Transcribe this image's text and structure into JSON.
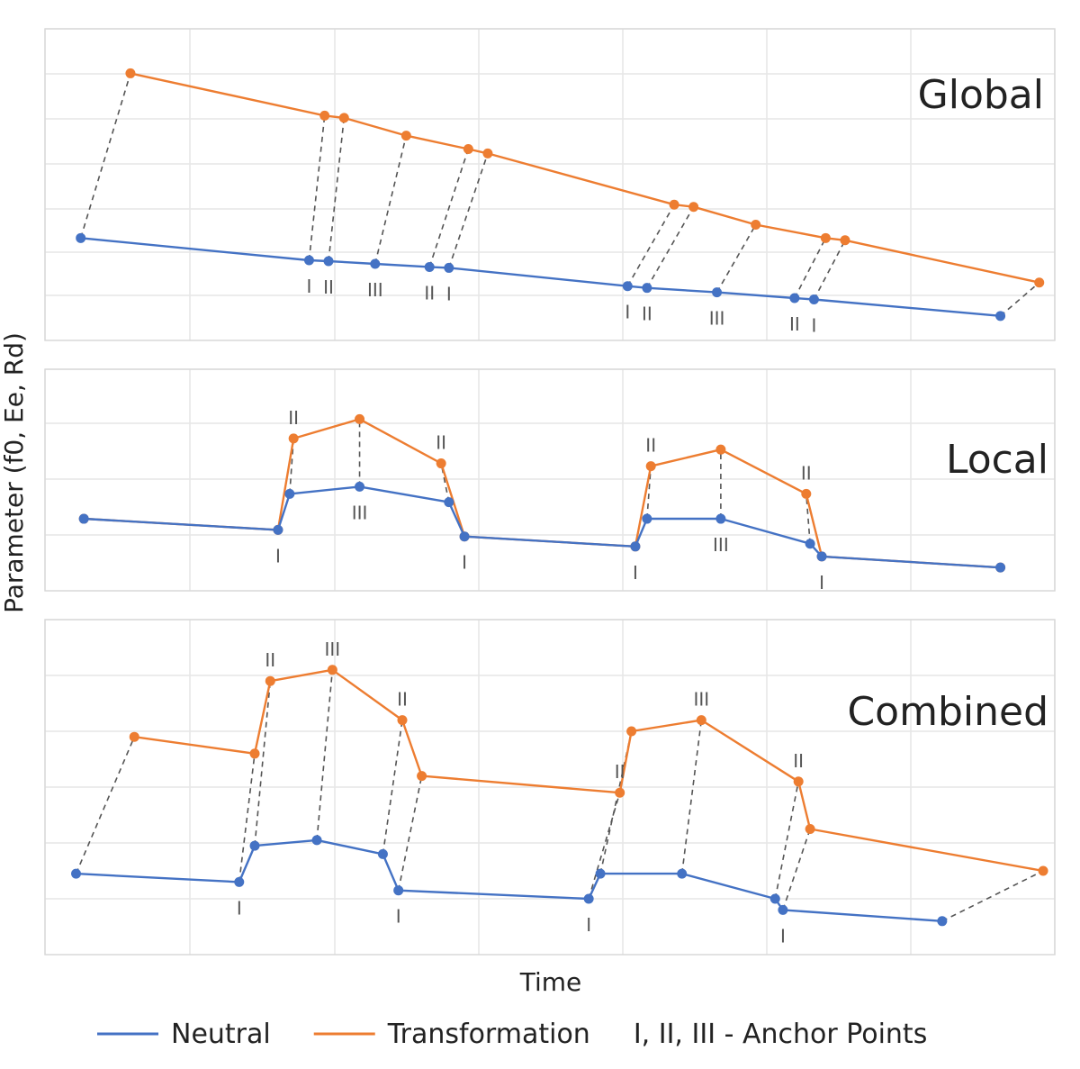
{
  "chart_data": {
    "type": "line",
    "xlabel": "Time",
    "ylabel": "Parameter (f0, Ee, Rd)",
    "legend_position": "bottom",
    "grid": true,
    "colors": {
      "neutral": "#4472C4",
      "transformation": "#ED7D31",
      "connector": "#555555"
    },
    "legend": [
      {
        "key": "neutral",
        "label": "Neutral",
        "type": "line"
      },
      {
        "key": "transformation",
        "label": "Transformation",
        "type": "line"
      },
      {
        "key": "anchors",
        "label": "I, II, III - Anchor Points",
        "type": "text"
      }
    ],
    "panels": [
      {
        "title": "Global",
        "neutral": {
          "name": "Neutral",
          "x": [
            0.6,
            30,
            32.5,
            38.5,
            45.5,
            48,
            71,
            73.5,
            82.5,
            92.5,
            95,
            119
          ],
          "y": [
            2.3,
            1.8,
            1.78,
            1.72,
            1.65,
            1.63,
            1.22,
            1.18,
            1.08,
            0.95,
            0.92,
            0.55
          ]
        },
        "transformation": {
          "name": "Transformation",
          "x": [
            7,
            32,
            34.5,
            42.5,
            50.5,
            53,
            77,
            79.5,
            87.5,
            96.5,
            99,
            124
          ],
          "y": [
            6.0,
            5.05,
            5.0,
            4.6,
            4.3,
            4.2,
            3.05,
            3.0,
            2.6,
            2.3,
            2.25,
            1.3
          ]
        },
        "anchors": [
          {
            "label": "I",
            "x": 30
          },
          {
            "label": "II",
            "x": 32.5
          },
          {
            "label": "III",
            "x": 38.5
          },
          {
            "label": "II",
            "x": 45.5
          },
          {
            "label": "I",
            "x": 48
          },
          {
            "label": "I",
            "x": 71
          },
          {
            "label": "II",
            "x": 73.5
          },
          {
            "label": "III",
            "x": 82.5
          },
          {
            "label": "II",
            "x": 92.5
          },
          {
            "label": "I",
            "x": 95
          }
        ]
      },
      {
        "title": "Local",
        "neutral": {
          "name": "Neutral",
          "x": [
            1,
            26,
            27.5,
            36.5,
            48,
            50,
            72,
            73.5,
            83,
            94.5,
            96,
            119
          ],
          "y": [
            1.3,
            1.1,
            1.75,
            1.88,
            1.6,
            0.98,
            0.8,
            1.3,
            1.3,
            0.85,
            0.62,
            0.42
          ]
        },
        "transformation": {
          "name": "Transformation",
          "x": [
            1,
            26,
            28,
            36.5,
            47,
            50,
            72,
            74,
            83,
            94,
            96,
            119
          ],
          "y": [
            1.3,
            1.1,
            2.75,
            3.1,
            2.3,
            0.98,
            0.8,
            2.25,
            2.55,
            1.75,
            0.62,
            0.42
          ]
        },
        "anchors": [
          {
            "label": "I",
            "x": 26
          },
          {
            "label": "II",
            "x": 28
          },
          {
            "label": "III",
            "x": 36.5
          },
          {
            "label": "II",
            "x": 47
          },
          {
            "label": "I",
            "x": 50
          },
          {
            "label": "I",
            "x": 72
          },
          {
            "label": "II",
            "x": 74
          },
          {
            "label": "III",
            "x": 83
          },
          {
            "label": "II",
            "x": 94
          },
          {
            "label": "I",
            "x": 96
          }
        ]
      },
      {
        "title": "Combined",
        "neutral": {
          "name": "Neutral",
          "x": [
            0,
            21,
            23,
            31,
            39.5,
            41.5,
            66,
            67.5,
            78,
            90,
            91,
            111.5
          ],
          "y": [
            1.45,
            1.3,
            1.95,
            2.05,
            1.8,
            1.15,
            1.0,
            1.45,
            1.45,
            1.0,
            0.8,
            0.6
          ]
        },
        "transformation": {
          "name": "Transformation",
          "x": [
            7.5,
            23,
            25,
            33,
            42,
            44.5,
            70,
            71.5,
            80.5,
            93,
            94.5,
            124.5
          ],
          "y": [
            3.9,
            3.6,
            4.9,
            5.1,
            4.2,
            3.2,
            2.9,
            4.0,
            4.2,
            3.1,
            2.25,
            1.5
          ]
        },
        "anchors": [
          {
            "label": "I",
            "x": 21
          },
          {
            "label": "II",
            "x": 25
          },
          {
            "label": "III",
            "x": 33
          },
          {
            "label": "II",
            "x": 42
          },
          {
            "label": "I",
            "x": 41.5
          },
          {
            "label": "I",
            "x": 66
          },
          {
            "label": "II",
            "x": 70
          },
          {
            "label": "III",
            "x": 80.5
          },
          {
            "label": "II",
            "x": 93
          },
          {
            "label": "I",
            "x": 91
          }
        ]
      }
    ]
  }
}
